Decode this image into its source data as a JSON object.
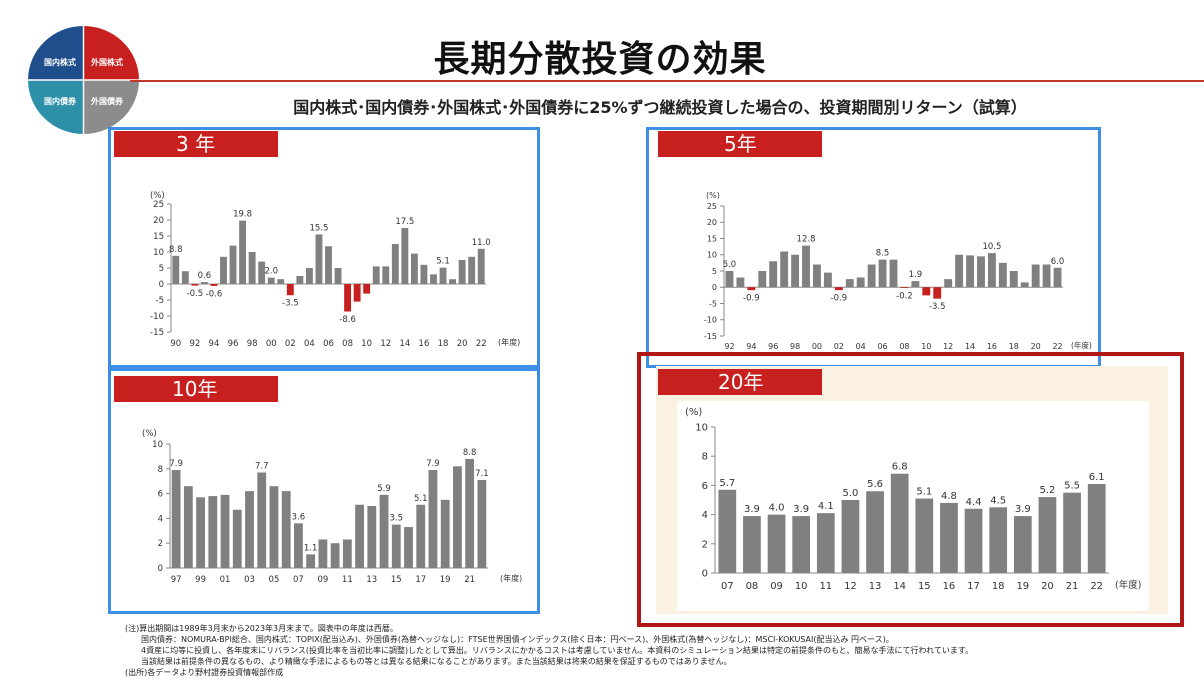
{
  "title": "長期分散投資の効果",
  "subtitle": "国内株式･国内債券･外国株式･外国債券に25%ずつ継続投資した場合の、投資期間別リターン（試算）",
  "pie": {
    "q1": "国内株式",
    "q2": "外国株式",
    "q3": "国内債券",
    "q4": "外国債券",
    "colors": {
      "q1": "#1f4e8c",
      "q2": "#c8201e",
      "q3": "#2e8fa8",
      "q4": "#8c8c8c"
    }
  },
  "colors": {
    "bar": "#808080",
    "neg": "#c8201e",
    "tag": "#c8201e",
    "blue": "#3d8fe6",
    "darkred": "#b01818",
    "cream": "#fbf1e3"
  },
  "unit_label": "(%)",
  "year_label": "(年度)",
  "chart_data": [
    {
      "type": "bar",
      "tag": "3 年",
      "x": [
        "90",
        "91",
        "92",
        "93",
        "94",
        "95",
        "96",
        "97",
        "98",
        "99",
        "00",
        "01",
        "02",
        "03",
        "04",
        "05",
        "06",
        "07",
        "08",
        "09",
        "10",
        "11",
        "12",
        "13",
        "14",
        "15",
        "16",
        "17",
        "18",
        "19",
        "20",
        "21",
        "22"
      ],
      "xticks": [
        "90",
        "92",
        "94",
        "96",
        "98",
        "00",
        "02",
        "04",
        "06",
        "08",
        "10",
        "12",
        "14",
        "16",
        "18",
        "20",
        "22"
      ],
      "values": [
        8.8,
        4.0,
        -0.5,
        0.6,
        -0.6,
        8.5,
        12.0,
        19.8,
        10.0,
        7.0,
        2.0,
        1.5,
        -3.5,
        2.5,
        5.0,
        15.5,
        11.8,
        5.0,
        -8.6,
        -5.5,
        -3.0,
        5.5,
        5.5,
        12.5,
        17.5,
        9.5,
        6.0,
        3.0,
        5.1,
        1.5,
        7.5,
        8.5,
        11.0
      ],
      "labels": {
        "0": "8.8",
        "2": "-0.5",
        "3": "0.6",
        "4": "-0.6",
        "7": "19.8",
        "10": "2.0",
        "12": "-3.5",
        "15": "15.5",
        "18": "-8.6",
        "24": "17.5",
        "28": "5.1",
        "32": "11.0"
      },
      "ylim": [
        -15,
        25
      ],
      "yticks": [
        -15,
        -10,
        -5,
        0,
        5,
        10,
        15,
        20,
        25
      ]
    },
    {
      "type": "bar",
      "tag": "5年",
      "x": [
        "92",
        "93",
        "94",
        "95",
        "96",
        "97",
        "98",
        "99",
        "00",
        "01",
        "02",
        "03",
        "04",
        "05",
        "06",
        "07",
        "08",
        "09",
        "10",
        "11",
        "12",
        "13",
        "14",
        "15",
        "16",
        "17",
        "18",
        "19",
        "20",
        "21",
        "22"
      ],
      "xticks": [
        "92",
        "94",
        "96",
        "98",
        "00",
        "02",
        "04",
        "06",
        "08",
        "10",
        "12",
        "14",
        "16",
        "18",
        "20",
        "22"
      ],
      "values": [
        5.0,
        3.0,
        -0.9,
        5.0,
        8.0,
        11.0,
        10.0,
        12.8,
        7.0,
        4.5,
        -0.9,
        2.5,
        3.0,
        7.0,
        8.5,
        8.5,
        -0.2,
        1.9,
        -2.5,
        -3.5,
        2.5,
        10.0,
        9.8,
        9.5,
        10.5,
        7.5,
        5.0,
        1.5,
        7.0,
        7.0,
        6.0
      ],
      "labels": {
        "0": "5.0",
        "2": "-0.9",
        "7": "12.8",
        "10": "-0.9",
        "14": "8.5",
        "16": "-0.2",
        "17": "1.9",
        "19": "-3.5",
        "24": "10.5",
        "30": "6.0"
      },
      "ylim": [
        -15,
        25
      ],
      "yticks": [
        -15,
        -10,
        -5,
        0,
        5,
        10,
        15,
        20,
        25
      ]
    },
    {
      "type": "bar",
      "tag": "10年",
      "x": [
        "97",
        "98",
        "99",
        "00",
        "01",
        "02",
        "03",
        "04",
        "05",
        "06",
        "07",
        "08",
        "09",
        "10",
        "11",
        "12",
        "13",
        "14",
        "15",
        "16",
        "17",
        "18",
        "19",
        "20",
        "21",
        "22"
      ],
      "xticks": [
        "97",
        "99",
        "01",
        "03",
        "05",
        "07",
        "09",
        "11",
        "13",
        "15",
        "17",
        "19",
        "21"
      ],
      "values": [
        7.9,
        6.6,
        5.7,
        5.8,
        5.9,
        4.7,
        6.2,
        7.7,
        6.6,
        6.2,
        3.6,
        1.1,
        2.3,
        2.0,
        2.3,
        5.1,
        5.0,
        5.9,
        3.5,
        3.3,
        5.1,
        7.9,
        5.5,
        8.2,
        8.8,
        7.1
      ],
      "labels": {
        "0": "7.9",
        "7": "7.7",
        "10": "3.6",
        "11": "1.1",
        "17": "5.9",
        "18": "3.5",
        "20": "5.1",
        "21": "7.9",
        "24": "8.8",
        "25": "7.1"
      },
      "ylim": [
        0,
        10
      ],
      "yticks": [
        0,
        2,
        4,
        6,
        8,
        10
      ]
    },
    {
      "type": "bar",
      "tag": "20年",
      "x": [
        "07",
        "08",
        "09",
        "10",
        "11",
        "12",
        "13",
        "14",
        "15",
        "16",
        "17",
        "18",
        "19",
        "20",
        "21",
        "22"
      ],
      "xticks": [
        "07",
        "08",
        "09",
        "10",
        "11",
        "12",
        "13",
        "14",
        "15",
        "16",
        "17",
        "18",
        "19",
        "20",
        "21",
        "22"
      ],
      "values": [
        5.7,
        3.9,
        4.0,
        3.9,
        4.1,
        5.0,
        5.6,
        6.8,
        5.1,
        4.8,
        4.4,
        4.5,
        3.9,
        5.2,
        5.5,
        6.1
      ],
      "labels": {
        "0": "5.7",
        "1": "3.9",
        "2": "4.0",
        "3": "3.9",
        "4": "4.1",
        "5": "5.0",
        "6": "5.6",
        "7": "6.8",
        "8": "5.1",
        "9": "4.8",
        "10": "4.4",
        "11": "4.5",
        "12": "3.9",
        "13": "5.2",
        "14": "5.5",
        "15": "6.1"
      },
      "ylim": [
        0,
        10
      ],
      "yticks": [
        0,
        2,
        4,
        6,
        8,
        10
      ]
    }
  ],
  "notes": [
    "(注)算出期間は1989年3月末から2023年3月末まで。図表中の年度は西暦。",
    "　　国内債券：NOMURA-BPI総合、国内株式：TOPIX(配当込み)、外国債券(為替ヘッジなし)：FTSE世界国債インデックス(除く日本：円ベース)、外国株式(為替ヘッジなし)：MSCI-KOKUSAI(配当込み 円ベース)。",
    "　　4資産に均等に投資し、各年度末にリバランス(投資比率を当初比率に調整)したとして算出。リバランスにかかるコストは考慮していません。本資料のシミュレーション結果は特定の前提条件のもと、簡易な手法にて行われています。",
    "　　当該結果は前提条件の異なるもの、より精緻な手法によるもの等とは異なる結果になることがあります。また当該結果は将来の結果を保証するものではありません。",
    "(出所)各データより野村證券投資情報部作成"
  ]
}
